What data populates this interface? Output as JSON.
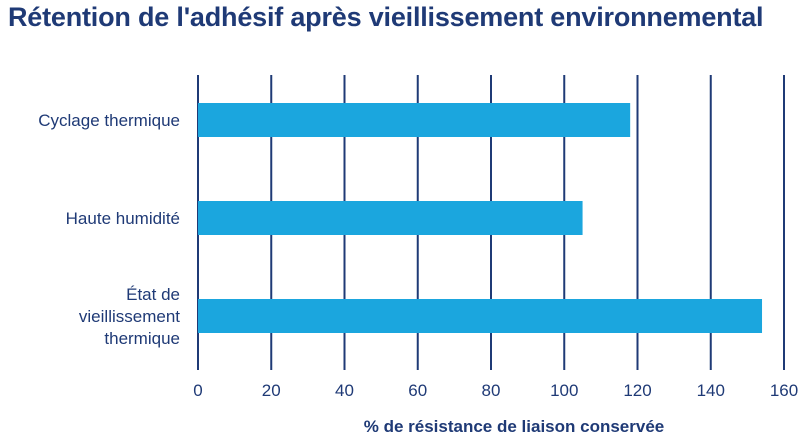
{
  "chart_data": {
    "type": "bar",
    "orientation": "horizontal",
    "title": "Rétention de l'adhésif après vieillissement environnemental",
    "xlabel": "% de résistance de liaison conservée",
    "ylabel": "",
    "categories": [
      [
        "Cyclage thermique"
      ],
      [
        "Haute humidité"
      ],
      [
        "État de",
        "vieillissement",
        "thermique"
      ]
    ],
    "values": [
      118,
      105,
      154
    ],
    "xlim": [
      0,
      160
    ],
    "xticks": [
      0,
      20,
      40,
      60,
      80,
      100,
      120,
      140,
      160
    ],
    "grid": true,
    "legend": "none",
    "colors": {
      "bar": "#1ba6de",
      "grid": "#1f3a76",
      "text": "#1f3a76"
    }
  }
}
